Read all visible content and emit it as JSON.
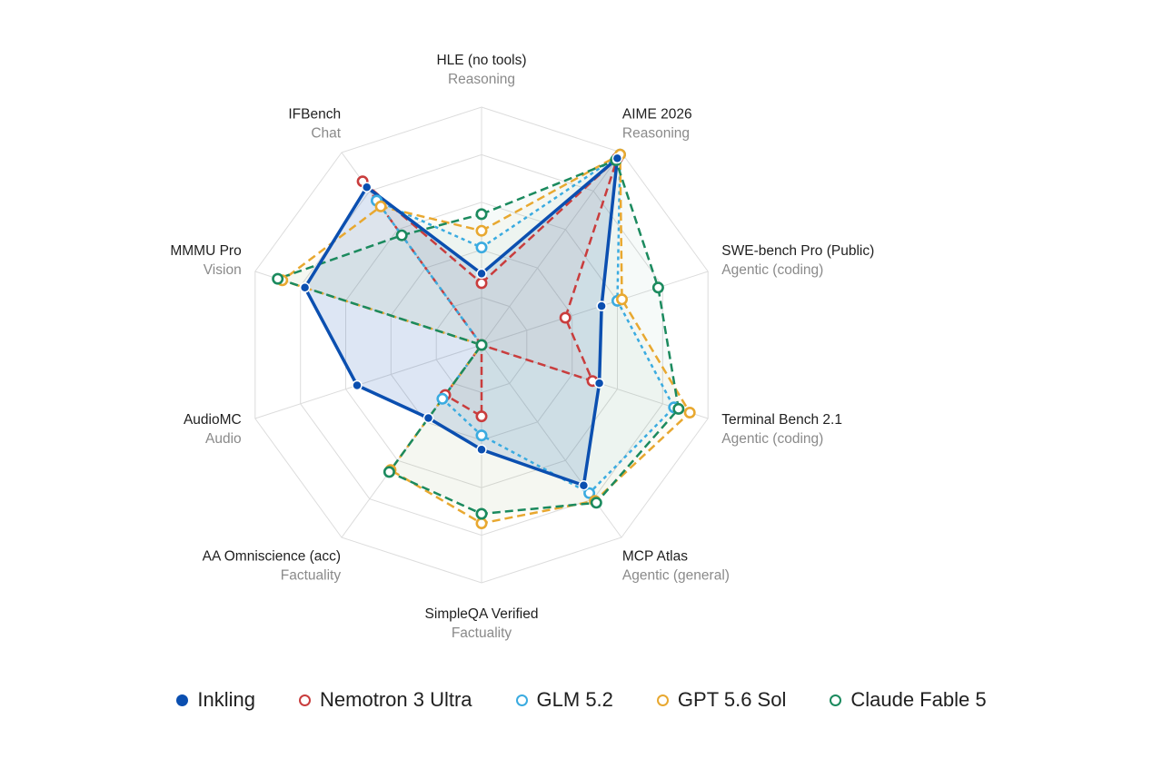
{
  "chart_data": {
    "type": "radar",
    "axes": [
      {
        "name": "HLE (no tools)",
        "category": "Reasoning"
      },
      {
        "name": "AIME 2026",
        "category": "Reasoning"
      },
      {
        "name": "SWE-bench Pro (Public)",
        "category": "Agentic (coding)"
      },
      {
        "name": "Terminal Bench 2.1",
        "category": "Agentic (coding)"
      },
      {
        "name": "MCP Atlas",
        "category": "Agentic (general)"
      },
      {
        "name": "SimpleQA Verified",
        "category": "Factuality"
      },
      {
        "name": "AA Omniscience (acc)",
        "category": "Factuality"
      },
      {
        "name": "AudioMC",
        "category": "Audio"
      },
      {
        "name": "MMMU Pro",
        "category": "Vision"
      },
      {
        "name": "IFBench",
        "category": "Chat"
      }
    ],
    "rlim": [
      0,
      1
    ],
    "grid_levels": 5,
    "grid": true,
    "legend_position": "bottom",
    "series": [
      {
        "name": "Inkling",
        "color": "#0b4fb0",
        "style": "solid",
        "marker": "filled",
        "values": [
          0.3,
          0.97,
          0.53,
          0.52,
          0.73,
          0.44,
          0.38,
          0.55,
          0.78,
          0.82
        ]
      },
      {
        "name": "Nemotron 3 Ultra",
        "color": "#c93d3d",
        "style": "dashed",
        "marker": "hollow",
        "values": [
          0.26,
          0.97,
          0.37,
          0.49,
          0.0,
          0.3,
          0.26,
          0.0,
          0.0,
          0.85
        ]
      },
      {
        "name": "GLM 5.2",
        "color": "#3aabe0",
        "style": "dotted",
        "marker": "hollow",
        "values": [
          0.41,
          0.99,
          0.6,
          0.85,
          0.77,
          0.38,
          0.28,
          0.0,
          0.0,
          0.75
        ]
      },
      {
        "name": "GPT 5.6 Sol",
        "color": "#e8a830",
        "style": "dashed",
        "marker": "hollow",
        "values": [
          0.48,
          0.99,
          0.62,
          0.92,
          0.81,
          0.75,
          0.65,
          0.0,
          0.88,
          0.72
        ]
      },
      {
        "name": "Claude Fable 5",
        "color": "#1b8a5e",
        "style": "dashed",
        "marker": "hollow",
        "values": [
          0.55,
          0.96,
          0.78,
          0.87,
          0.82,
          0.71,
          0.66,
          0.0,
          0.9,
          0.57
        ]
      }
    ]
  },
  "legend": [
    {
      "label": "Inkling",
      "color": "#0b4fb0",
      "marker": "filled"
    },
    {
      "label": "Nemotron 3 Ultra",
      "color": "#c93d3d",
      "marker": "hollow"
    },
    {
      "label": "GLM 5.2",
      "color": "#3aabe0",
      "marker": "hollow"
    },
    {
      "label": "GPT 5.6 Sol",
      "color": "#e8a830",
      "marker": "hollow"
    },
    {
      "label": "Claude Fable 5",
      "color": "#1b8a5e",
      "marker": "hollow"
    }
  ]
}
